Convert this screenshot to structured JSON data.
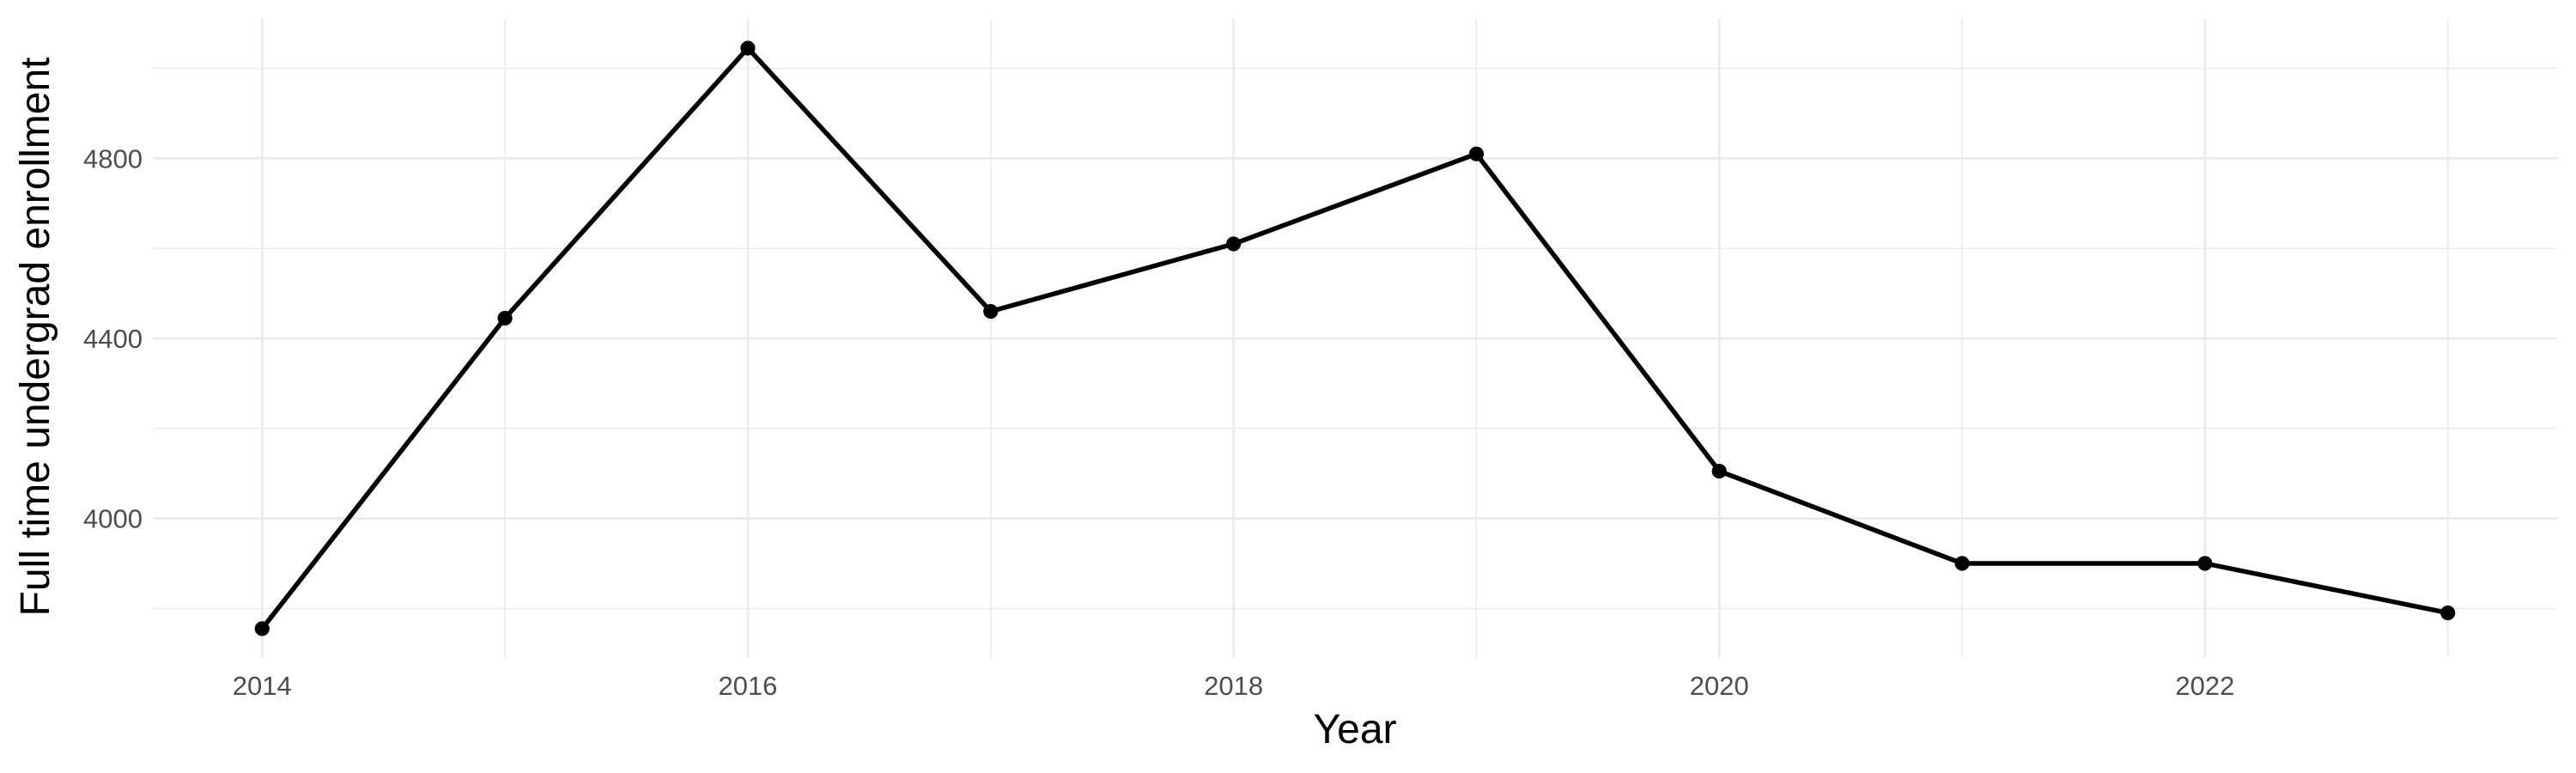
{
  "chart_data": {
    "type": "line",
    "title": "",
    "xlabel": "Year",
    "ylabel": "Full time undergrad enrollment",
    "x": [
      2014,
      2015,
      2016,
      2017,
      2018,
      2019,
      2020,
      2021,
      2022,
      2023
    ],
    "series": [
      {
        "name": "Full time undergrad enrollment",
        "values": [
          3755,
          4445,
          5045,
          4460,
          4610,
          4810,
          4105,
          3900,
          3900,
          3790
        ]
      }
    ],
    "xlim": [
      2013.55,
      2023.45
    ],
    "ylim": [
      3690,
      5110
    ],
    "x_ticks": {
      "labels": [
        "2014",
        "2016",
        "2018",
        "2020",
        "2022"
      ],
      "values": [
        2014,
        2016,
        2018,
        2020,
        2022
      ]
    },
    "x_minor_gridlines": [
      2015,
      2017,
      2019,
      2021,
      2023
    ],
    "y_ticks": {
      "labels": [
        "4000",
        "4400",
        "4800"
      ],
      "values": [
        4000,
        4400,
        4800
      ]
    },
    "y_minor_gridlines": [
      3800,
      4200,
      4600,
      5000
    ],
    "grid": "major+minor",
    "legend": "none",
    "marker": "filled-circle",
    "style": {
      "line_color": "#000000",
      "point_color": "#000000",
      "grid_major_color": "#ebebeb",
      "grid_minor_color": "#ebebeb",
      "tick_label_color": "#4d4d4d",
      "axis_title_color": "#000000",
      "background": "#ffffff"
    }
  }
}
